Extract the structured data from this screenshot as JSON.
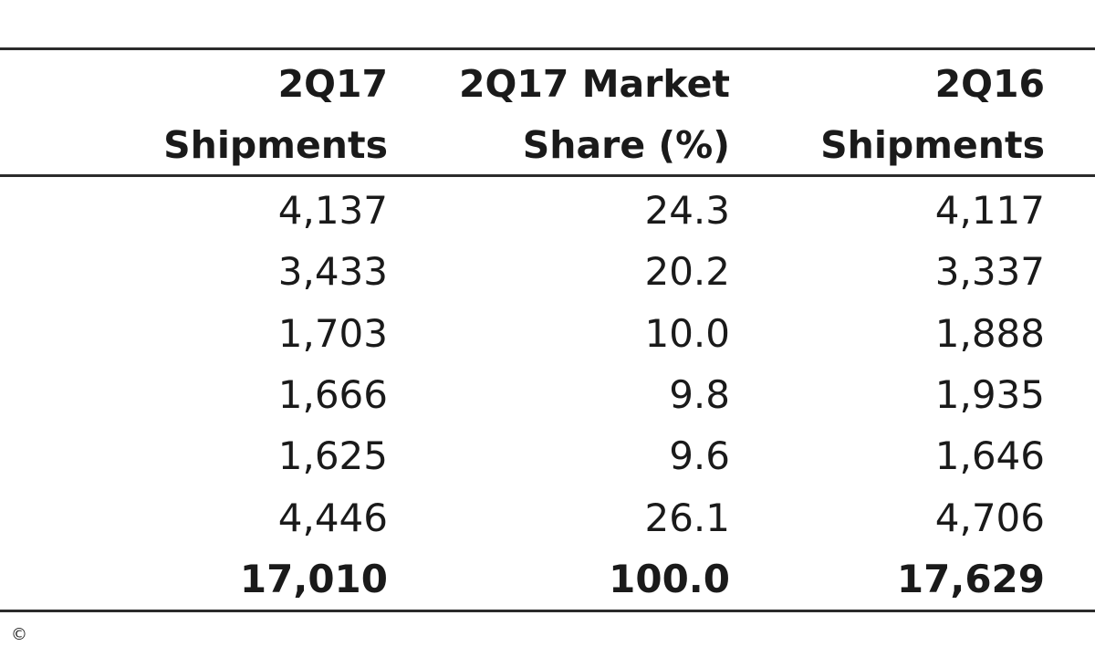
{
  "table": {
    "headers": [
      {
        "line1": "2Q17",
        "line2": "Shipments"
      },
      {
        "line1": "2Q17 Market",
        "line2": "Share (%)"
      },
      {
        "line1": "2Q16",
        "line2": "Shipments"
      }
    ],
    "rows": [
      [
        "4,137",
        "24.3",
        "4,117"
      ],
      [
        "3,433",
        "20.2",
        "3,337"
      ],
      [
        "1,703",
        "10.0",
        "1,888"
      ],
      [
        "1,666",
        "9.8",
        "1,935"
      ],
      [
        "1,625",
        "9.6",
        "1,646"
      ],
      [
        "4,446",
        "26.1",
        "4,706"
      ]
    ],
    "total": [
      "17,010",
      "100.0",
      "17,629"
    ]
  },
  "footer": {
    "copyright_symbol": "©"
  }
}
